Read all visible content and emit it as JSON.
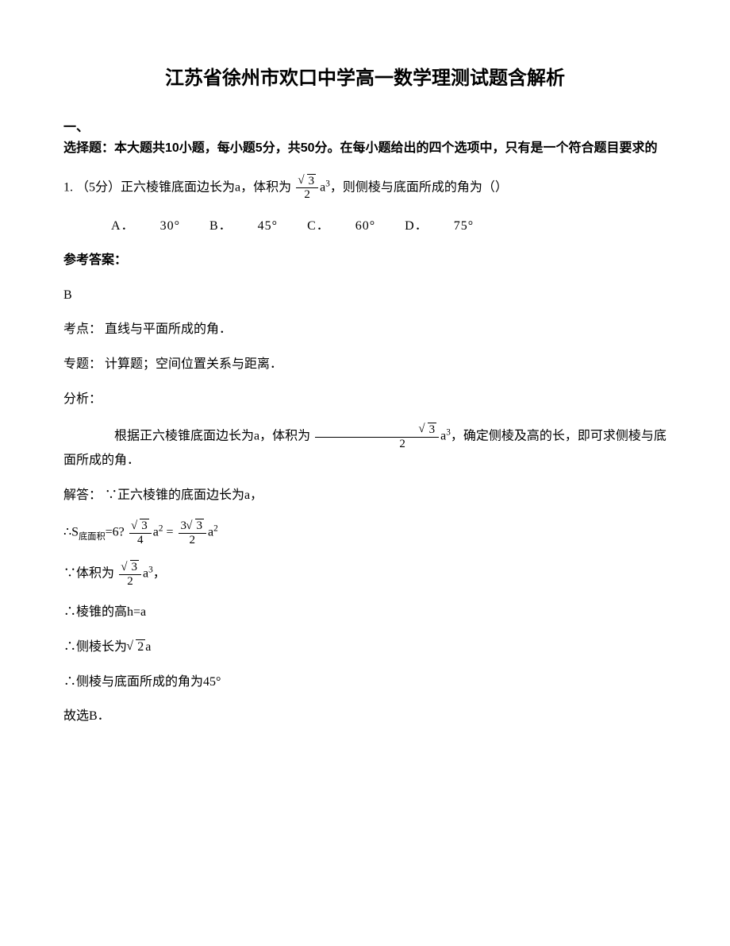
{
  "title": "江苏省徐州市欢口中学高一数学理测试题含解析",
  "section1": {
    "head_line1": "一、",
    "head_line2": "选择题：本大题共10小题，每小题5分，共50分。在每小题给出的四个选项中，只有是一个符合题目要求的"
  },
  "q1": {
    "prefix": "1. （5分）正六棱锥底面边长为a，体积为",
    "frac_num": "3",
    "frac_den": "2",
    "suffix": "a",
    "exp": "3",
    "tail": "，则侧棱与底面所成的角为（）",
    "opts": {
      "A": "A．",
      "Av": "30°",
      "B": "B．",
      "Bv": "45°",
      "C": "C．",
      "Cv": "60°",
      "D": "D．",
      "Dv": "75°"
    }
  },
  "answer_label": "参考答案：",
  "answer_value": "B",
  "kaodian_label": "考点：",
  "kaodian_value": "直线与平面所成的角．",
  "zhuanti_label": "专题：",
  "zhuanti_value": "计算题；空间位置关系与距离．",
  "fenxi_label": "分析：",
  "fenxi_body_prefix": "根据正六棱锥底面边长为a，体积为",
  "fenxi_body_suffix": "，确定侧棱及高的长，即可求侧棱与底面所成的角．",
  "jieda_label": "解答：",
  "jieda_line1": "∵正六棱锥的底面边长为a，",
  "s_prefix": "∴S",
  "s_sub": "底面积",
  "s_mid": "=6?",
  "s_frac1_num": "3",
  "s_frac1_den": "4",
  "s_a": "a",
  "s_exp": "2",
  "s_eq": "=",
  "s_frac2_num_coef": "3",
  "s_frac2_num_rad": "3",
  "s_frac2_den": "2",
  "vol_prefix": "∵体积为",
  "vol_suffix": "，",
  "h_line": "∴棱锥的高h=a",
  "edge_prefix": "∴侧棱长为",
  "edge_rad": "2",
  "edge_suffix": "a",
  "angle_line": "∴侧棱与底面所成的角为45°",
  "final_line": "故选B．"
}
